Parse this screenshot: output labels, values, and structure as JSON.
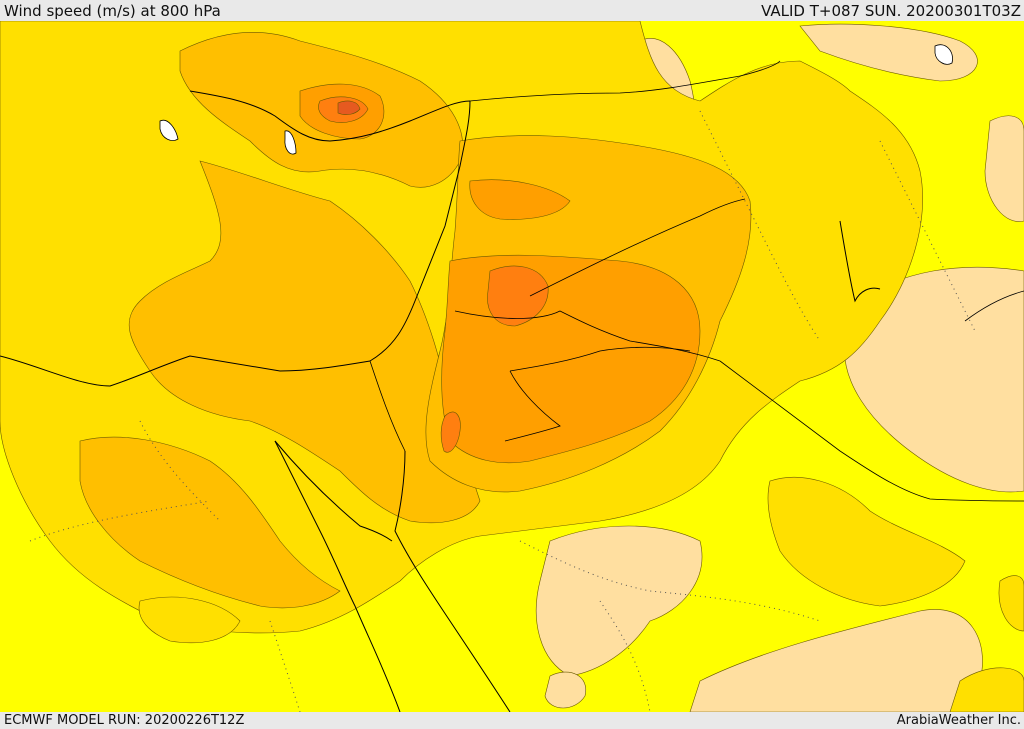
{
  "header": {
    "title": "Wind speed (m/s) at 800 hPa",
    "valid": "VALID T+087 SUN. 20200301T03Z"
  },
  "footer": {
    "model_run": "ECMWF MODEL RUN: 20200226T12Z",
    "credit": "ArabiaWeather Inc."
  },
  "colors": {
    "background": "#ffff00",
    "band_light": "#ffdfa0",
    "band_gold": "#ffe000",
    "band_amber": "#ffbf00",
    "band_orange": "#ff9f00",
    "band_deep": "#ff7f10",
    "band_red": "#e65a20",
    "water_white": "#ffffff"
  }
}
